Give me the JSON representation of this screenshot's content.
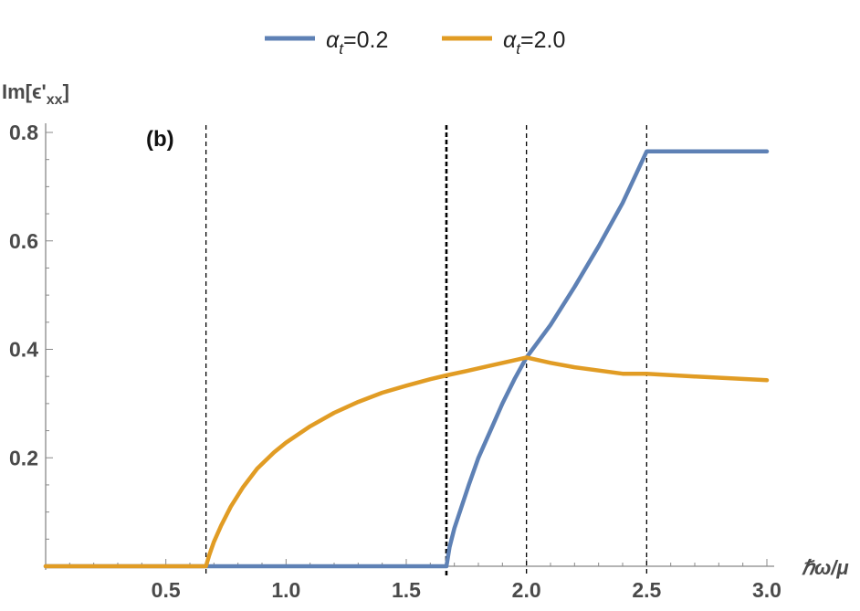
{
  "chart_data": {
    "type": "line",
    "panel_label": "(b)",
    "ylabel": "Im[ϵ'xx]",
    "ylabel_parts": {
      "base": "Im[ϵ'",
      "sub": "xx",
      "close": "]"
    },
    "xlabel": "ℏω/μ",
    "xlim": [
      0,
      3.0
    ],
    "ylim": [
      0,
      0.8
    ],
    "x_ticks": [
      {
        "value": 0.5,
        "label": "0.5"
      },
      {
        "value": 1.0,
        "label": "1.0"
      },
      {
        "value": 1.5,
        "label": "1.5"
      },
      {
        "value": 2.0,
        "label": "2.0"
      },
      {
        "value": 2.5,
        "label": "2.5"
      },
      {
        "value": 3.0,
        "label": "3.0"
      }
    ],
    "y_ticks": [
      {
        "value": 0.2,
        "label": "0.2"
      },
      {
        "value": 0.4,
        "label": "0.4"
      },
      {
        "value": 0.6,
        "label": "0.6"
      },
      {
        "value": 0.8,
        "label": "0.8"
      }
    ],
    "vertical_dashed_lines": [
      0.667,
      1.667,
      2.0,
      2.5
    ],
    "legend": {
      "position": "top-center"
    },
    "series": [
      {
        "name": "αt=0.2",
        "legend_base": "α",
        "legend_sub": "t",
        "legend_value": "=0.2",
        "color": "#5e81b5",
        "x": [
          0.0,
          1.667,
          1.68,
          1.7,
          1.73,
          1.76,
          1.8,
          1.85,
          1.9,
          1.95,
          2.0,
          2.1,
          2.2,
          2.3,
          2.4,
          2.5,
          2.6,
          2.8,
          3.0
        ],
        "y": [
          0.0,
          0.0,
          0.035,
          0.07,
          0.11,
          0.15,
          0.2,
          0.25,
          0.3,
          0.345,
          0.385,
          0.445,
          0.515,
          0.59,
          0.67,
          0.765,
          0.765,
          0.765,
          0.765
        ]
      },
      {
        "name": "αt=2.0",
        "legend_base": "α",
        "legend_sub": "t",
        "legend_value": "=2.0",
        "color": "#e19c24",
        "x": [
          0.0,
          0.667,
          0.68,
          0.7,
          0.73,
          0.77,
          0.82,
          0.88,
          0.95,
          1.0,
          1.1,
          1.2,
          1.3,
          1.4,
          1.5,
          1.6,
          1.667,
          1.75,
          1.85,
          1.95,
          2.0,
          2.1,
          2.2,
          2.4,
          2.5,
          2.7,
          3.0
        ],
        "y": [
          0.0,
          0.0,
          0.02,
          0.045,
          0.075,
          0.11,
          0.145,
          0.18,
          0.21,
          0.228,
          0.258,
          0.283,
          0.303,
          0.32,
          0.333,
          0.345,
          0.352,
          0.36,
          0.37,
          0.38,
          0.385,
          0.375,
          0.367,
          0.355,
          0.355,
          0.35,
          0.343
        ]
      }
    ]
  }
}
